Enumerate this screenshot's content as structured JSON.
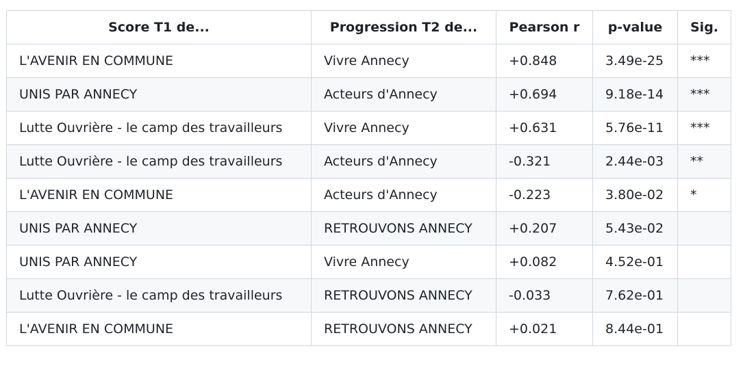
{
  "table": {
    "headers": [
      "Score T1 de...",
      "Progression T2 de...",
      "Pearson r",
      "p-value",
      "Sig."
    ],
    "rows": [
      [
        "L'AVENIR EN COMMUNE",
        "Vivre Annecy",
        "+0.848",
        "3.49e-25",
        "***"
      ],
      [
        "UNIS PAR ANNECY",
        "Acteurs d'Annecy",
        "+0.694",
        "9.18e-14",
        "***"
      ],
      [
        "Lutte Ouvrière - le camp des travailleurs",
        "Vivre Annecy",
        "+0.631",
        "5.76e-11",
        "***"
      ],
      [
        "Lutte Ouvrière - le camp des travailleurs",
        "Acteurs d'Annecy",
        "-0.321",
        "2.44e-03",
        "**"
      ],
      [
        "L'AVENIR EN COMMUNE",
        "Acteurs d'Annecy",
        "-0.223",
        "3.80e-02",
        "*"
      ],
      [
        "UNIS PAR ANNECY",
        "RETROUVONS ANNECY",
        "+0.207",
        "5.43e-02",
        null
      ],
      [
        "UNIS PAR ANNECY",
        "Vivre Annecy",
        "+0.082",
        "4.52e-01",
        null
      ],
      [
        "Lutte Ouvrière - le camp des travailleurs",
        "RETROUVONS ANNECY",
        "-0.033",
        "7.62e-01",
        null
      ],
      [
        "L'AVENIR EN COMMUNE",
        "RETROUVONS ANNECY",
        "+0.021",
        "8.44e-01",
        null
      ]
    ]
  }
}
